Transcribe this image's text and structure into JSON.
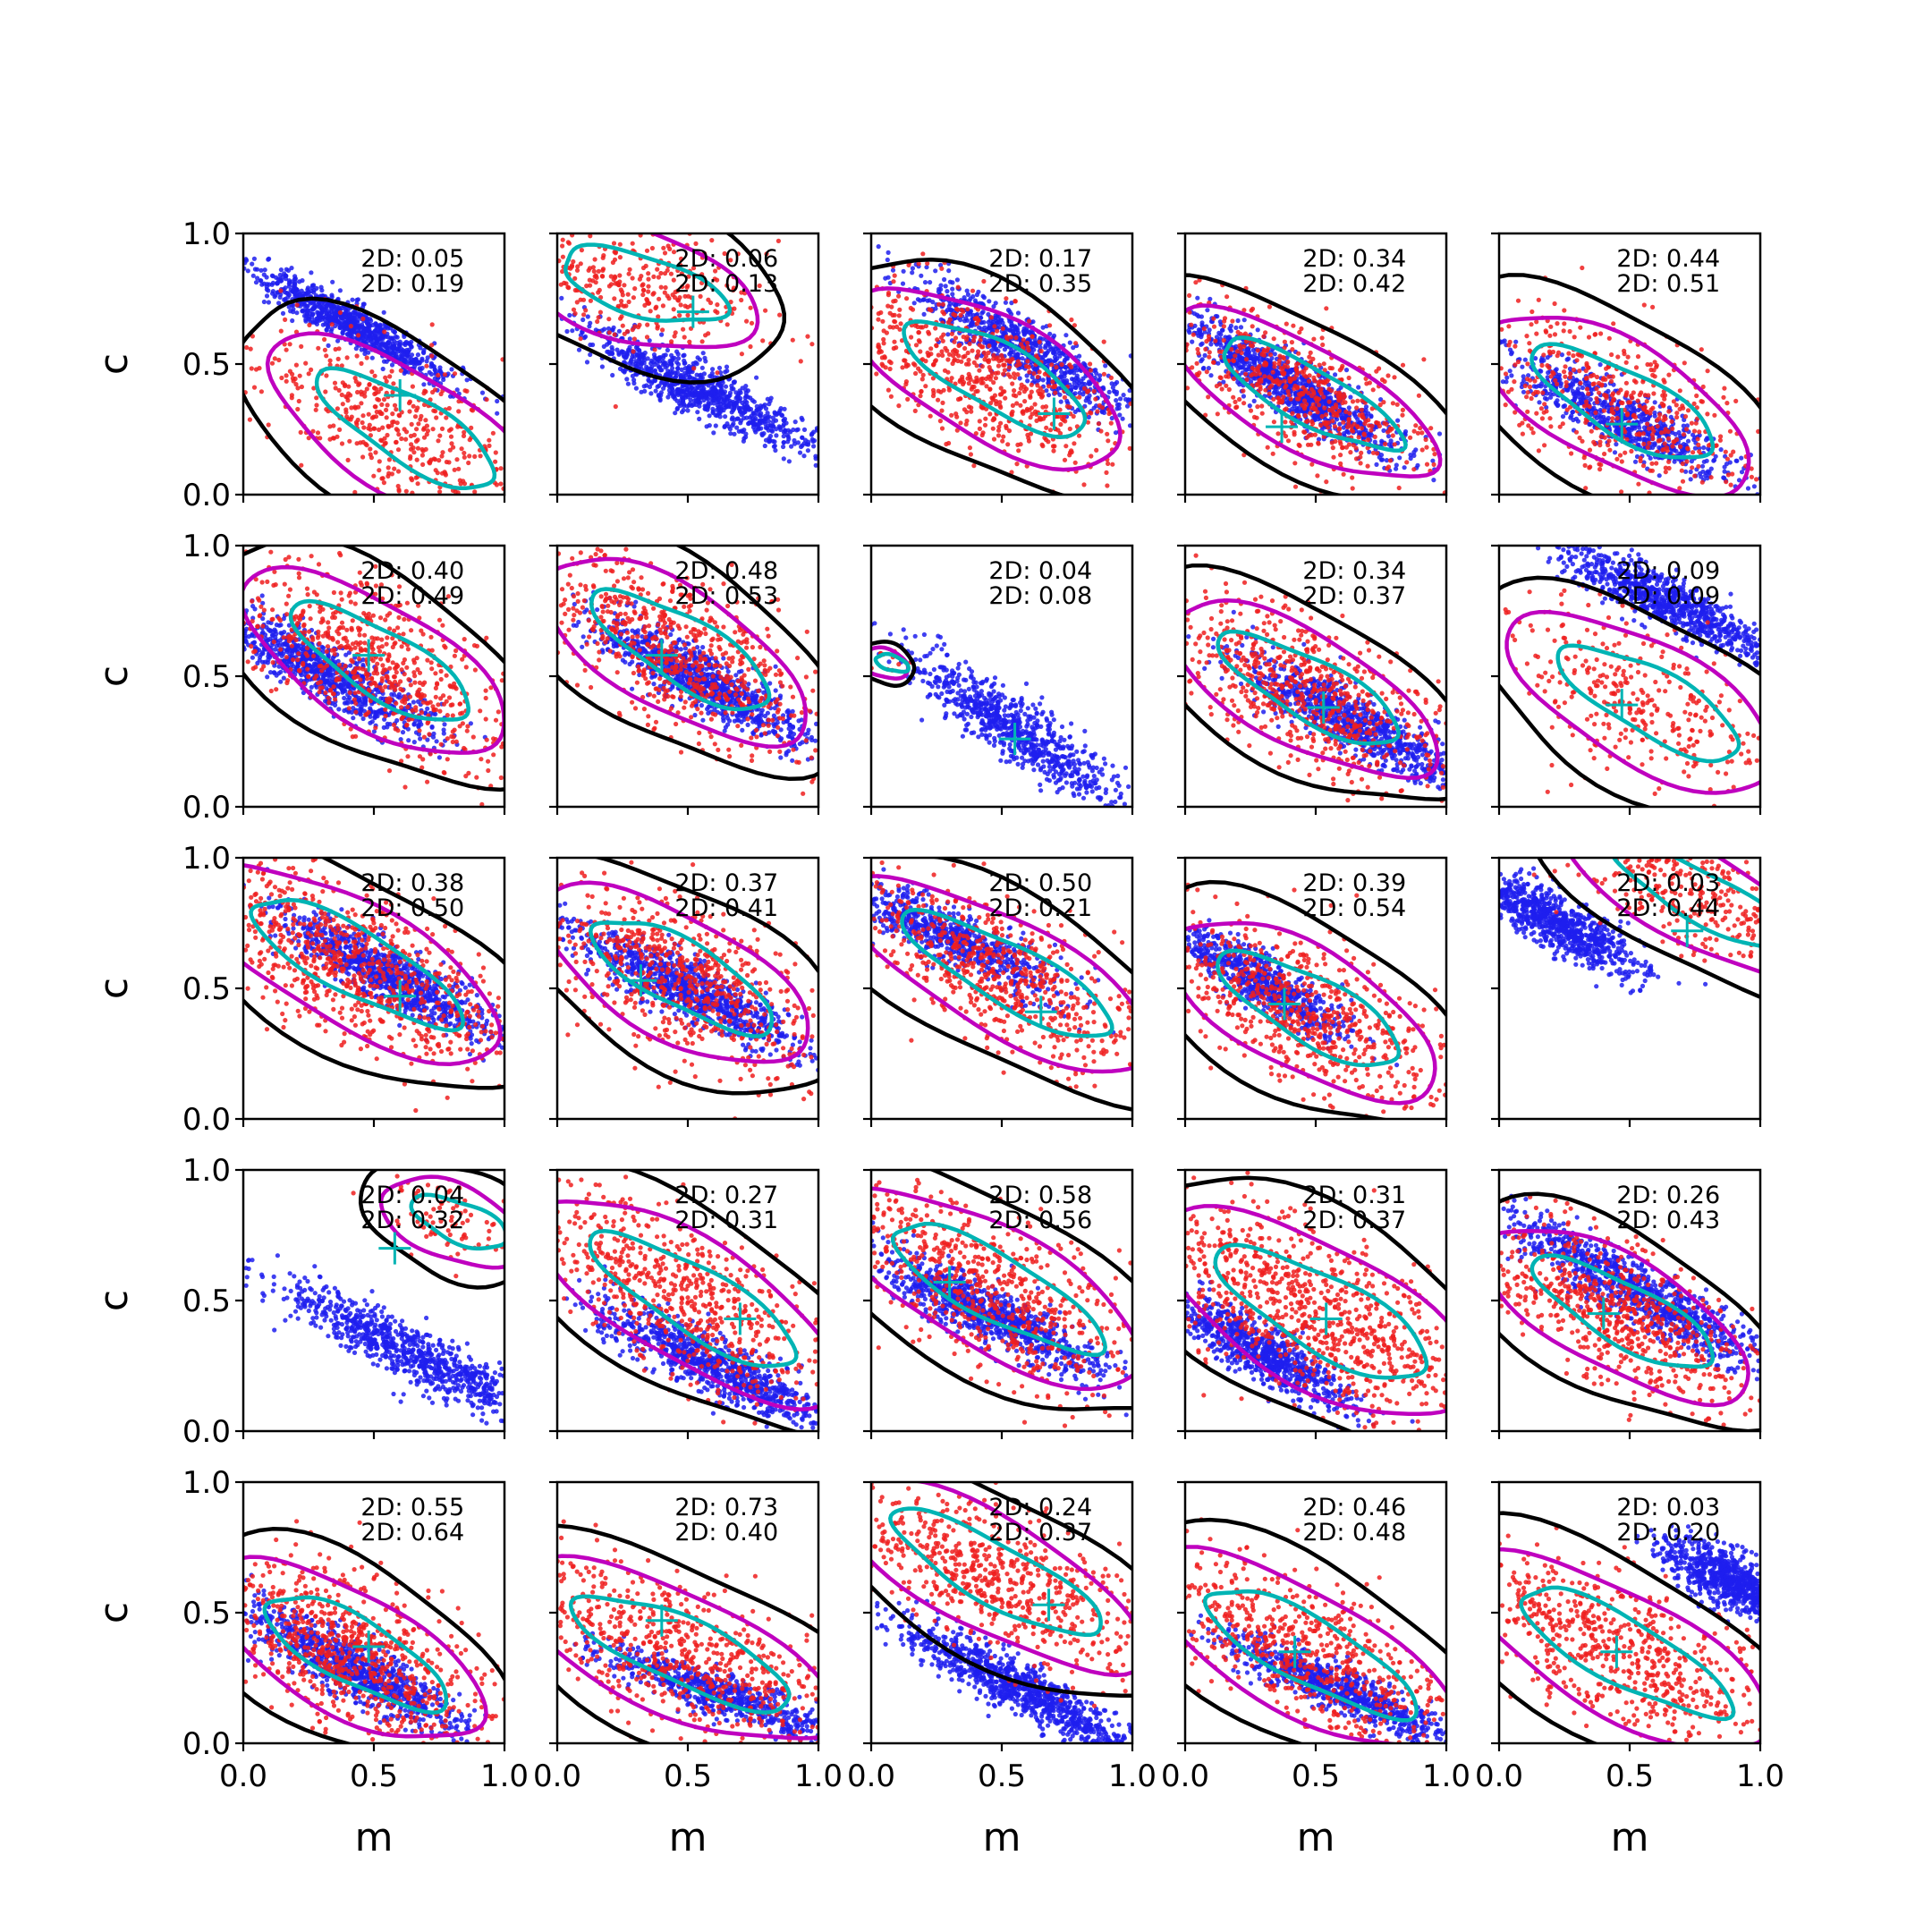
{
  "chart_data": {
    "type": "scatter",
    "layout": {
      "rows": 5,
      "cols": 5
    },
    "xlabel": "m",
    "ylabel": "c",
    "xlim": [
      0,
      1
    ],
    "ylim": [
      0,
      1
    ],
    "ticks": [
      0.0,
      0.5,
      1.0
    ],
    "tick_labels": [
      "0.0",
      "0.5",
      "1.0"
    ],
    "colors": {
      "points_a": "#1f1fee",
      "points_b": "#ee1f1f",
      "contour_a": "#000000",
      "contour_b": "#bf00bf",
      "contour_c": "#00b4b4",
      "marker": "#00b4b4"
    },
    "panels": [
      {
        "ann": [
          "2D: 0.05",
          "2D: 0.19"
        ],
        "marker": [
          0.6,
          0.38
        ],
        "a": {
          "cx": 0.42,
          "cy": 0.65,
          "sl": -0.55,
          "sp": 0.22,
          "w": 0.035,
          "n": 900
        },
        "b": {
          "cx": 0.6,
          "cy": 0.25,
          "sl": -0.6,
          "sp": 0.3,
          "w": 0.13,
          "n": 500
        }
      },
      {
        "ann": [
          "2D: 0.06",
          "2D: 0.13"
        ],
        "marker": [
          0.52,
          0.7
        ],
        "a": {
          "cx": 0.55,
          "cy": 0.4,
          "sl": -0.5,
          "sp": 0.25,
          "w": 0.045,
          "n": 900
        },
        "b": {
          "cx": 0.3,
          "cy": 0.8,
          "sl": -0.3,
          "sp": 0.25,
          "w": 0.12,
          "n": 350
        }
      },
      {
        "ann": [
          "2D: 0.17",
          "2D: 0.35"
        ],
        "marker": [
          0.7,
          0.31
        ],
        "a": {
          "cx": 0.6,
          "cy": 0.55,
          "sl": -0.6,
          "sp": 0.25,
          "w": 0.05,
          "n": 800
        },
        "b": {
          "cx": 0.45,
          "cy": 0.45,
          "sl": -0.55,
          "sp": 0.3,
          "w": 0.13,
          "n": 700
        }
      },
      {
        "ann": [
          "2D: 0.34",
          "2D: 0.42"
        ],
        "marker": [
          0.37,
          0.26
        ],
        "a": {
          "cx": 0.4,
          "cy": 0.42,
          "sl": -0.6,
          "sp": 0.25,
          "w": 0.05,
          "n": 1000
        },
        "b": {
          "cx": 0.45,
          "cy": 0.38,
          "sl": -0.55,
          "sp": 0.3,
          "w": 0.11,
          "n": 600
        }
      },
      {
        "ann": [
          "2D: 0.44",
          "2D: 0.51"
        ],
        "marker": [
          0.47,
          0.27
        ],
        "a": {
          "cx": 0.45,
          "cy": 0.3,
          "sl": -0.5,
          "sp": 0.25,
          "w": 0.05,
          "n": 700
        },
        "b": {
          "cx": 0.45,
          "cy": 0.35,
          "sl": -0.55,
          "sp": 0.3,
          "w": 0.13,
          "n": 500
        }
      },
      {
        "ann": [
          "2D: 0.40",
          "2D: 0.49"
        ],
        "marker": [
          0.48,
          0.58
        ],
        "a": {
          "cx": 0.3,
          "cy": 0.52,
          "sl": -0.55,
          "sp": 0.25,
          "w": 0.05,
          "n": 900
        },
        "b": {
          "cx": 0.5,
          "cy": 0.55,
          "sl": -0.6,
          "sp": 0.3,
          "w": 0.13,
          "n": 700
        }
      },
      {
        "ann": [
          "2D: 0.48",
          "2D: 0.53"
        ],
        "marker": [
          0.4,
          0.58
        ],
        "a": {
          "cx": 0.55,
          "cy": 0.48,
          "sl": -0.55,
          "sp": 0.25,
          "w": 0.05,
          "n": 900
        },
        "b": {
          "cx": 0.45,
          "cy": 0.6,
          "sl": -0.6,
          "sp": 0.3,
          "w": 0.13,
          "n": 700
        }
      },
      {
        "ann": [
          "2D: 0.04",
          "2D: 0.08"
        ],
        "marker": [
          0.55,
          0.26
        ],
        "a": {
          "cx": 0.55,
          "cy": 0.3,
          "sl": -0.7,
          "sp": 0.25,
          "w": 0.05,
          "n": 800
        },
        "b": {
          "cx": 0.05,
          "cy": 0.55,
          "sl": -0.3,
          "sp": 0.05,
          "w": 0.03,
          "n": 10
        }
      },
      {
        "ann": [
          "2D: 0.34",
          "2D: 0.37"
        ],
        "marker": [
          0.53,
          0.38
        ],
        "a": {
          "cx": 0.65,
          "cy": 0.32,
          "sl": -0.55,
          "sp": 0.25,
          "w": 0.05,
          "n": 900
        },
        "b": {
          "cx": 0.45,
          "cy": 0.45,
          "sl": -0.55,
          "sp": 0.3,
          "w": 0.12,
          "n": 700
        }
      },
      {
        "ann": [
          "2D: 0.09",
          "2D: 0.09"
        ],
        "marker": [
          0.47,
          0.39
        ],
        "a": {
          "cx": 0.65,
          "cy": 0.78,
          "sl": -0.5,
          "sp": 0.25,
          "w": 0.045,
          "n": 900
        },
        "b": {
          "cx": 0.55,
          "cy": 0.4,
          "sl": -0.55,
          "sp": 0.3,
          "w": 0.13,
          "n": 350
        }
      },
      {
        "ann": [
          "2D: 0.38",
          "2D: 0.50"
        ],
        "marker": [
          0.6,
          0.47
        ],
        "a": {
          "cx": 0.55,
          "cy": 0.55,
          "sl": -0.55,
          "sp": 0.25,
          "w": 0.05,
          "n": 900
        },
        "b": {
          "cx": 0.4,
          "cy": 0.6,
          "sl": -0.55,
          "sp": 0.35,
          "w": 0.13,
          "n": 800
        }
      },
      {
        "ann": [
          "2D: 0.37",
          "2D: 0.41"
        ],
        "marker": [
          0.32,
          0.53
        ],
        "a": {
          "cx": 0.5,
          "cy": 0.5,
          "sl": -0.5,
          "sp": 0.25,
          "w": 0.05,
          "n": 900
        },
        "b": {
          "cx": 0.45,
          "cy": 0.55,
          "sl": -0.55,
          "sp": 0.3,
          "w": 0.13,
          "n": 700
        }
      },
      {
        "ann": [
          "2D: 0.50",
          "2D: 0.21"
        ],
        "marker": [
          0.65,
          0.41
        ],
        "a": {
          "cx": 0.3,
          "cy": 0.7,
          "sl": -0.5,
          "sp": 0.25,
          "w": 0.05,
          "n": 700
        },
        "b": {
          "cx": 0.5,
          "cy": 0.55,
          "sl": -0.55,
          "sp": 0.35,
          "w": 0.12,
          "n": 700
        }
      },
      {
        "ann": [
          "2D: 0.39",
          "2D: 0.54"
        ],
        "marker": [
          0.38,
          0.44
        ],
        "a": {
          "cx": 0.3,
          "cy": 0.52,
          "sl": -0.6,
          "sp": 0.2,
          "w": 0.045,
          "n": 700
        },
        "b": {
          "cx": 0.45,
          "cy": 0.42,
          "sl": -0.55,
          "sp": 0.3,
          "w": 0.13,
          "n": 700
        }
      },
      {
        "ann": [
          "2D: 0.03",
          "2D: 0.44"
        ],
        "marker": [
          0.72,
          0.72
        ],
        "a": {
          "cx": 0.22,
          "cy": 0.75,
          "sl": -0.55,
          "sp": 0.18,
          "w": 0.045,
          "n": 900
        },
        "b": {
          "cx": 0.75,
          "cy": 0.85,
          "sl": -0.55,
          "sp": 0.3,
          "w": 0.1,
          "n": 400
        }
      },
      {
        "ann": [
          "2D: 0.04",
          "2D: 0.32"
        ],
        "marker": [
          0.58,
          0.7
        ],
        "a": {
          "cx": 0.65,
          "cy": 0.3,
          "sl": -0.5,
          "sp": 0.3,
          "w": 0.05,
          "n": 900
        },
        "b": {
          "cx": 0.8,
          "cy": 0.8,
          "sl": -0.4,
          "sp": 0.15,
          "w": 0.08,
          "n": 80
        }
      },
      {
        "ann": [
          "2D: 0.27",
          "2D: 0.31"
        ],
        "marker": [
          0.7,
          0.43
        ],
        "a": {
          "cx": 0.6,
          "cy": 0.25,
          "sl": -0.5,
          "sp": 0.25,
          "w": 0.05,
          "n": 900
        },
        "b": {
          "cx": 0.5,
          "cy": 0.5,
          "sl": -0.6,
          "sp": 0.35,
          "w": 0.13,
          "n": 700
        }
      },
      {
        "ann": [
          "2D: 0.58",
          "2D: 0.56"
        ],
        "marker": [
          0.3,
          0.57
        ],
        "a": {
          "cx": 0.45,
          "cy": 0.45,
          "sl": -0.5,
          "sp": 0.25,
          "w": 0.05,
          "n": 900
        },
        "b": {
          "cx": 0.45,
          "cy": 0.55,
          "sl": -0.55,
          "sp": 0.35,
          "w": 0.13,
          "n": 700
        }
      },
      {
        "ann": [
          "2D: 0.31",
          "2D: 0.37"
        ],
        "marker": [
          0.54,
          0.43
        ],
        "a": {
          "cx": 0.3,
          "cy": 0.3,
          "sl": -0.6,
          "sp": 0.2,
          "w": 0.05,
          "n": 800
        },
        "b": {
          "cx": 0.5,
          "cy": 0.45,
          "sl": -0.55,
          "sp": 0.35,
          "w": 0.15,
          "n": 900
        }
      },
      {
        "ann": [
          "2D: 0.26",
          "2D: 0.43"
        ],
        "marker": [
          0.4,
          0.45
        ],
        "a": {
          "cx": 0.55,
          "cy": 0.52,
          "sl": -0.55,
          "sp": 0.3,
          "w": 0.05,
          "n": 1000
        },
        "b": {
          "cx": 0.45,
          "cy": 0.45,
          "sl": -0.55,
          "sp": 0.3,
          "w": 0.12,
          "n": 700
        }
      },
      {
        "ann": [
          "2D: 0.55",
          "2D: 0.64"
        ],
        "marker": [
          0.48,
          0.37
        ],
        "a": {
          "cx": 0.4,
          "cy": 0.3,
          "sl": -0.55,
          "sp": 0.25,
          "w": 0.05,
          "n": 900
        },
        "b": {
          "cx": 0.4,
          "cy": 0.35,
          "sl": -0.55,
          "sp": 0.3,
          "w": 0.13,
          "n": 800
        }
      },
      {
        "ann": [
          "2D: 0.73",
          "2D: 0.40"
        ],
        "marker": [
          0.4,
          0.47
        ],
        "a": {
          "cx": 0.65,
          "cy": 0.18,
          "sl": -0.35,
          "sp": 0.25,
          "w": 0.04,
          "n": 700
        },
        "b": {
          "cx": 0.45,
          "cy": 0.35,
          "sl": -0.45,
          "sp": 0.35,
          "w": 0.13,
          "n": 700
        }
      },
      {
        "ann": [
          "2D: 0.24",
          "2D: 0.37"
        ],
        "marker": [
          0.68,
          0.53
        ],
        "a": {
          "cx": 0.55,
          "cy": 0.22,
          "sl": -0.55,
          "sp": 0.25,
          "w": 0.045,
          "n": 1000
        },
        "b": {
          "cx": 0.45,
          "cy": 0.65,
          "sl": -0.55,
          "sp": 0.35,
          "w": 0.12,
          "n": 700
        }
      },
      {
        "ann": [
          "2D: 0.46",
          "2D: 0.48"
        ],
        "marker": [
          0.42,
          0.35
        ],
        "a": {
          "cx": 0.6,
          "cy": 0.2,
          "sl": -0.45,
          "sp": 0.25,
          "w": 0.04,
          "n": 800
        },
        "b": {
          "cx": 0.45,
          "cy": 0.35,
          "sl": -0.55,
          "sp": 0.35,
          "w": 0.13,
          "n": 700
        }
      },
      {
        "ann": [
          "2D: 0.03",
          "2D: 0.20"
        ],
        "marker": [
          0.45,
          0.35
        ],
        "a": {
          "cx": 0.9,
          "cy": 0.62,
          "sl": -0.5,
          "sp": 0.15,
          "w": 0.05,
          "n": 900
        },
        "b": {
          "cx": 0.45,
          "cy": 0.35,
          "sl": -0.55,
          "sp": 0.35,
          "w": 0.13,
          "n": 700
        }
      }
    ]
  }
}
